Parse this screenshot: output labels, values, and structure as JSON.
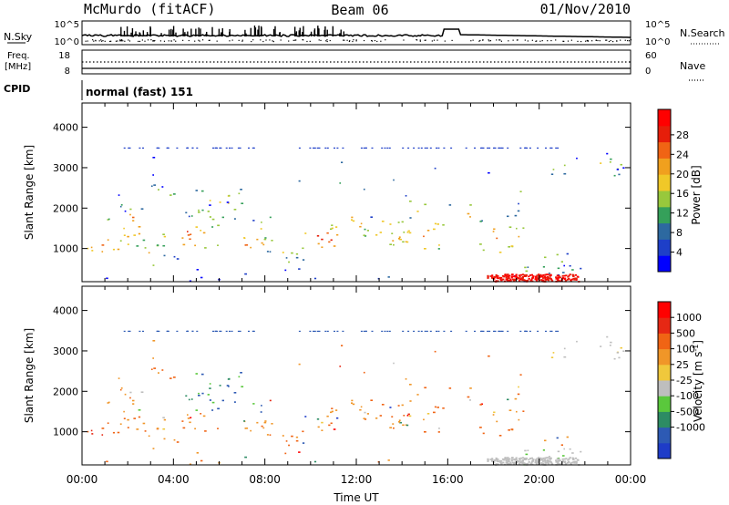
{
  "header": {
    "station": "McMurdo (fitACF)",
    "beam": "Beam 06",
    "date": "01/Nov/2010"
  },
  "top_panels": {
    "nsky": {
      "label": "N.Sky",
      "ticks": [
        "10^5",
        "10^0"
      ]
    },
    "nsearch": {
      "label": "N.Search",
      "ticks": [
        "10^5",
        "10^0"
      ]
    },
    "freq": {
      "label_line1": "Freq.",
      "label_line2": "[MHz]",
      "ticks": [
        "18",
        "8"
      ]
    },
    "nave": {
      "label": "Nave",
      "ticks": [
        "60",
        "0"
      ]
    },
    "cpid": {
      "label": "CPID",
      "value": "normal (fast) 151"
    }
  },
  "chart_data": [
    {
      "type": "heatmap",
      "name": "power",
      "ylabel": "Slant Range [km]",
      "yticks": [
        1000,
        2000,
        3000,
        4000
      ],
      "ylim": [
        180,
        4600
      ],
      "xlim": [
        0,
        24
      ],
      "xlabel": "Time UT",
      "xticks": [
        "00:00",
        "04:00",
        "08:00",
        "12:00",
        "16:00",
        "20:00",
        "00:00"
      ],
      "colorbar": {
        "label": "Power [dB]",
        "ticks": [
          "4",
          "8",
          "12",
          "16",
          "20",
          "24",
          "28"
        ],
        "colors": [
          "#0000ff",
          "#1e3fc8",
          "#2d69a0",
          "#35a05a",
          "#98c83c",
          "#f0c828",
          "#f0a01e",
          "#f06414",
          "#e61e0a",
          "#ff0000"
        ]
      }
    },
    {
      "type": "heatmap",
      "name": "velocity",
      "ylabel": "Slant Range [km]",
      "yticks": [
        1000,
        2000,
        3000,
        4000
      ],
      "ylim": [
        180,
        4600
      ],
      "xlim": [
        0,
        24
      ],
      "xlabel": "Time UT",
      "xticks": [
        "00:00",
        "04:00",
        "08:00",
        "12:00",
        "16:00",
        "20:00",
        "00:00"
      ],
      "colorbar": {
        "label_prefix": "Velocity [m s",
        "label_sup": "-1",
        "label_suffix": "]",
        "ticks": [
          "1000",
          "500",
          "100",
          "25",
          "-25",
          "-100",
          "-500",
          "-1000"
        ],
        "colors": [
          "#1e3cc8",
          "#2d5ab4",
          "#2d8c64",
          "#5ac83c",
          "#bebebe",
          "#f0c83c",
          "#f09628",
          "#f06414",
          "#e62814",
          "#ff0000"
        ]
      }
    }
  ]
}
